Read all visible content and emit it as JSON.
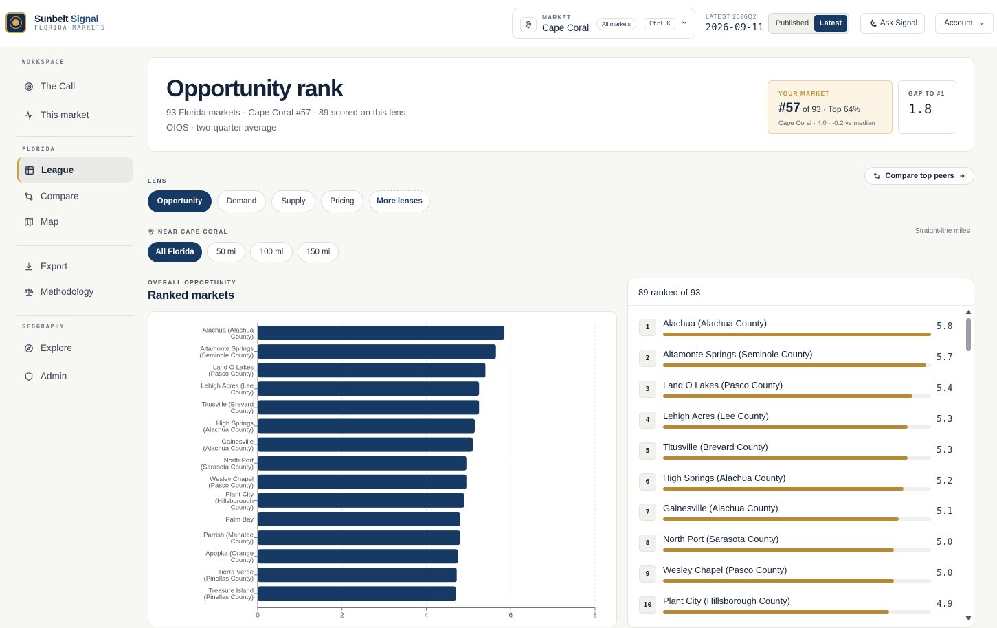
{
  "brand": {
    "name_a": "Sunbelt",
    "name_b": "Signal",
    "sub": "FLORIDA MARKETS"
  },
  "market": {
    "label": "MARKET",
    "value": "Cape Coral",
    "all_markets": "All markets",
    "shortcut": "Ctrl K"
  },
  "latest": {
    "label": "LATEST 2026Q2",
    "date": "2026-09-11"
  },
  "toggle": {
    "published": "Published",
    "latest": "Latest"
  },
  "ask_label": "Ask Signal",
  "account_label": "Account",
  "sidebar": {
    "workspace": "WORKSPACE",
    "the_call": "The Call",
    "this_market": "This market",
    "florida": "FLORIDA",
    "league": "League",
    "compare": "Compare",
    "map": "Map",
    "export": "Export",
    "methodology": "Methodology",
    "geography": "GEOGRAPHY",
    "explore": "Explore",
    "admin": "Admin"
  },
  "header": {
    "title": "Opportunity rank",
    "subtitle": "93 Florida markets · Cape Coral #57 · 89 scored on this lens.",
    "subtitle2": "OIOS · two-quarter average",
    "your_label": "YOUR MARKET",
    "your_rank": "#57",
    "your_rank_tail": " of 93 · Top 64%",
    "your_sub": "Cape Coral · 4.0 · -0.2 vs median",
    "gap_label": "GAP TO #1",
    "gap_value": "1.8"
  },
  "lens": {
    "label": "LENS",
    "options": [
      "Opportunity",
      "Demand",
      "Supply",
      "Pricing"
    ],
    "more": "More lenses",
    "compare_btn": "Compare top peers"
  },
  "near": {
    "label": "NEAR CAPE CORAL",
    "options": [
      "All Florida",
      "50 mi",
      "100 mi",
      "150 mi"
    ],
    "note": "Straight-line miles"
  },
  "section": {
    "kicker": "OVERALL OPPORTUNITY",
    "title": "Ranked markets"
  },
  "list": {
    "header": "89 ranked of 93",
    "rows": [
      {
        "rank": "1",
        "name": "Alachua (Alachua County)",
        "score": "5.8",
        "value": 5.8
      },
      {
        "rank": "2",
        "name": "Altamonte Springs (Seminole County)",
        "score": "5.7",
        "value": 5.7
      },
      {
        "rank": "3",
        "name": "Land O Lakes (Pasco County)",
        "score": "5.4",
        "value": 5.4
      },
      {
        "rank": "4",
        "name": "Lehigh Acres (Lee County)",
        "score": "5.3",
        "value": 5.3
      },
      {
        "rank": "5",
        "name": "Titusville (Brevard County)",
        "score": "5.3",
        "value": 5.3
      },
      {
        "rank": "6",
        "name": "High Springs (Alachua County)",
        "score": "5.2",
        "value": 5.2
      },
      {
        "rank": "7",
        "name": "Gainesville (Alachua County)",
        "score": "5.1",
        "value": 5.1
      },
      {
        "rank": "8",
        "name": "North Port (Sarasota County)",
        "score": "5.0",
        "value": 5.0
      },
      {
        "rank": "9",
        "name": "Wesley Chapel (Pasco County)",
        "score": "5.0",
        "value": 5.0
      },
      {
        "rank": "10",
        "name": "Plant City (Hillsborough County)",
        "score": "4.9",
        "value": 4.9
      }
    ]
  },
  "chart_data": {
    "type": "bar",
    "orientation": "horizontal",
    "categories": [
      [
        "Alachua (Alachua",
        "County)"
      ],
      [
        "Altamonte Springs",
        "(Seminole County)"
      ],
      [
        "Land O Lakes",
        "(Pasco County)"
      ],
      [
        "Lehigh Acres (Lee",
        "County)"
      ],
      [
        "Titusville (Brevard",
        "County)"
      ],
      [
        "High Springs",
        "(Alachua County)"
      ],
      [
        "Gainesville",
        "(Alachua County)"
      ],
      [
        "North Port",
        "(Sarasota County)"
      ],
      [
        "Wesley Chapel",
        "(Pasco County)"
      ],
      [
        "Plant City",
        "(Hillsborough",
        "County)"
      ],
      [
        "Palm Bay"
      ],
      [
        "Parrish (Manatee",
        "County)"
      ],
      [
        "Apopka (Orange",
        "County)"
      ],
      [
        "Tierra Verde",
        "(Pinellas County)"
      ],
      [
        "Treasure Island",
        "(Pinellas County)"
      ]
    ],
    "values": [
      5.85,
      5.65,
      5.4,
      5.25,
      5.25,
      5.15,
      5.1,
      4.95,
      4.95,
      4.9,
      4.8,
      4.8,
      4.75,
      4.72,
      4.7
    ],
    "xlim": [
      0,
      8
    ],
    "xticks": [
      "0",
      "2",
      "4",
      "6",
      "8"
    ],
    "bar_color": "#163a64",
    "grid": "vertical dashed"
  },
  "colors": {
    "navy": "#163a64",
    "gold": "#b98a2e",
    "accent_gold": "#c9a24a"
  }
}
